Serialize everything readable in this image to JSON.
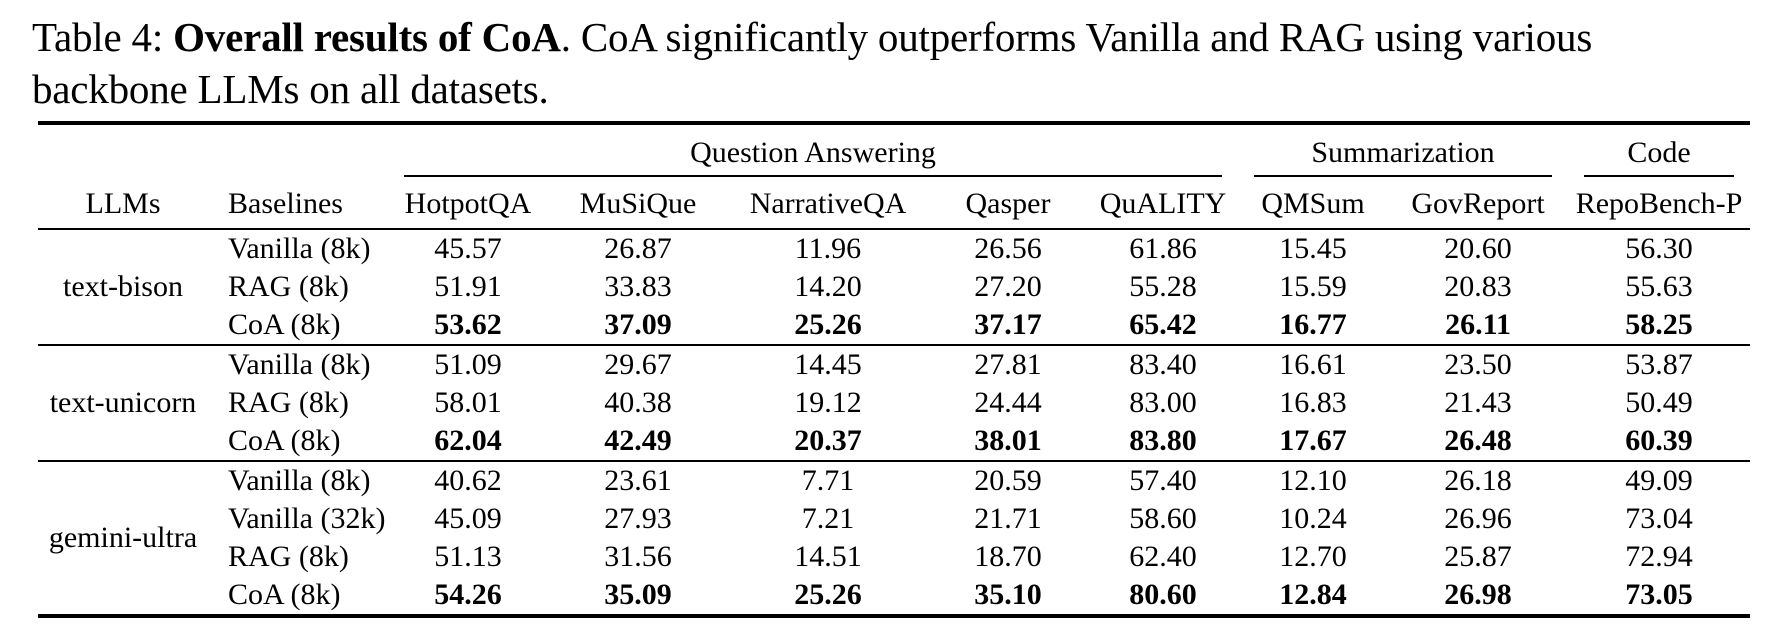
{
  "caption": {
    "label": "Table 4:",
    "title": "Overall results of CoA",
    "rest_line1": ". CoA significantly outperforms Vanilla and RAG using various",
    "line2": "backbone LLMs on all datasets."
  },
  "table": {
    "col_headers": {
      "llms": "LLMs",
      "baselines": "Baselines"
    },
    "groups": [
      {
        "label": "Question Answering",
        "columns": [
          "HotpotQA",
          "MuSiQue",
          "NarrativeQA",
          "Qasper",
          "QuALITY"
        ]
      },
      {
        "label": "Summarization",
        "columns": [
          "QMSum",
          "GovReport"
        ]
      },
      {
        "label": "Code",
        "columns": [
          "RepoBench-P"
        ]
      }
    ],
    "blocks": [
      {
        "llm": "text-bison",
        "rows": [
          {
            "baseline": "Vanilla (8k)",
            "bold": false,
            "values": [
              "45.57",
              "26.87",
              "11.96",
              "26.56",
              "61.86",
              "15.45",
              "20.60",
              "56.30"
            ]
          },
          {
            "baseline": "RAG (8k)",
            "bold": false,
            "values": [
              "51.91",
              "33.83",
              "14.20",
              "27.20",
              "55.28",
              "15.59",
              "20.83",
              "55.63"
            ]
          },
          {
            "baseline": "CoA (8k)",
            "bold": true,
            "values": [
              "53.62",
              "37.09",
              "25.26",
              "37.17",
              "65.42",
              "16.77",
              "26.11",
              "58.25"
            ]
          }
        ]
      },
      {
        "llm": "text-unicorn",
        "rows": [
          {
            "baseline": "Vanilla (8k)",
            "bold": false,
            "values": [
              "51.09",
              "29.67",
              "14.45",
              "27.81",
              "83.40",
              "16.61",
              "23.50",
              "53.87"
            ]
          },
          {
            "baseline": "RAG (8k)",
            "bold": false,
            "values": [
              "58.01",
              "40.38",
              "19.12",
              "24.44",
              "83.00",
              "16.83",
              "21.43",
              "50.49"
            ]
          },
          {
            "baseline": "CoA (8k)",
            "bold": true,
            "values": [
              "62.04",
              "42.49",
              "20.37",
              "38.01",
              "83.80",
              "17.67",
              "26.48",
              "60.39"
            ]
          }
        ]
      },
      {
        "llm": "gemini-ultra",
        "rows": [
          {
            "baseline": "Vanilla (8k)",
            "bold": false,
            "values": [
              "40.62",
              "23.61",
              "7.71",
              "20.59",
              "57.40",
              "12.10",
              "26.18",
              "49.09"
            ]
          },
          {
            "baseline": "Vanilla (32k)",
            "bold": false,
            "values": [
              "45.09",
              "27.93",
              "7.21",
              "21.71",
              "58.60",
              "10.24",
              "26.96",
              "73.04"
            ]
          },
          {
            "baseline": "RAG (8k)",
            "bold": false,
            "values": [
              "51.13",
              "31.56",
              "14.51",
              "18.70",
              "62.40",
              "12.70",
              "25.87",
              "72.94"
            ]
          },
          {
            "baseline": "CoA (8k)",
            "bold": true,
            "values": [
              "54.26",
              "35.09",
              "25.26",
              "35.10",
              "80.60",
              "12.84",
              "26.98",
              "73.05"
            ]
          }
        ]
      }
    ]
  }
}
